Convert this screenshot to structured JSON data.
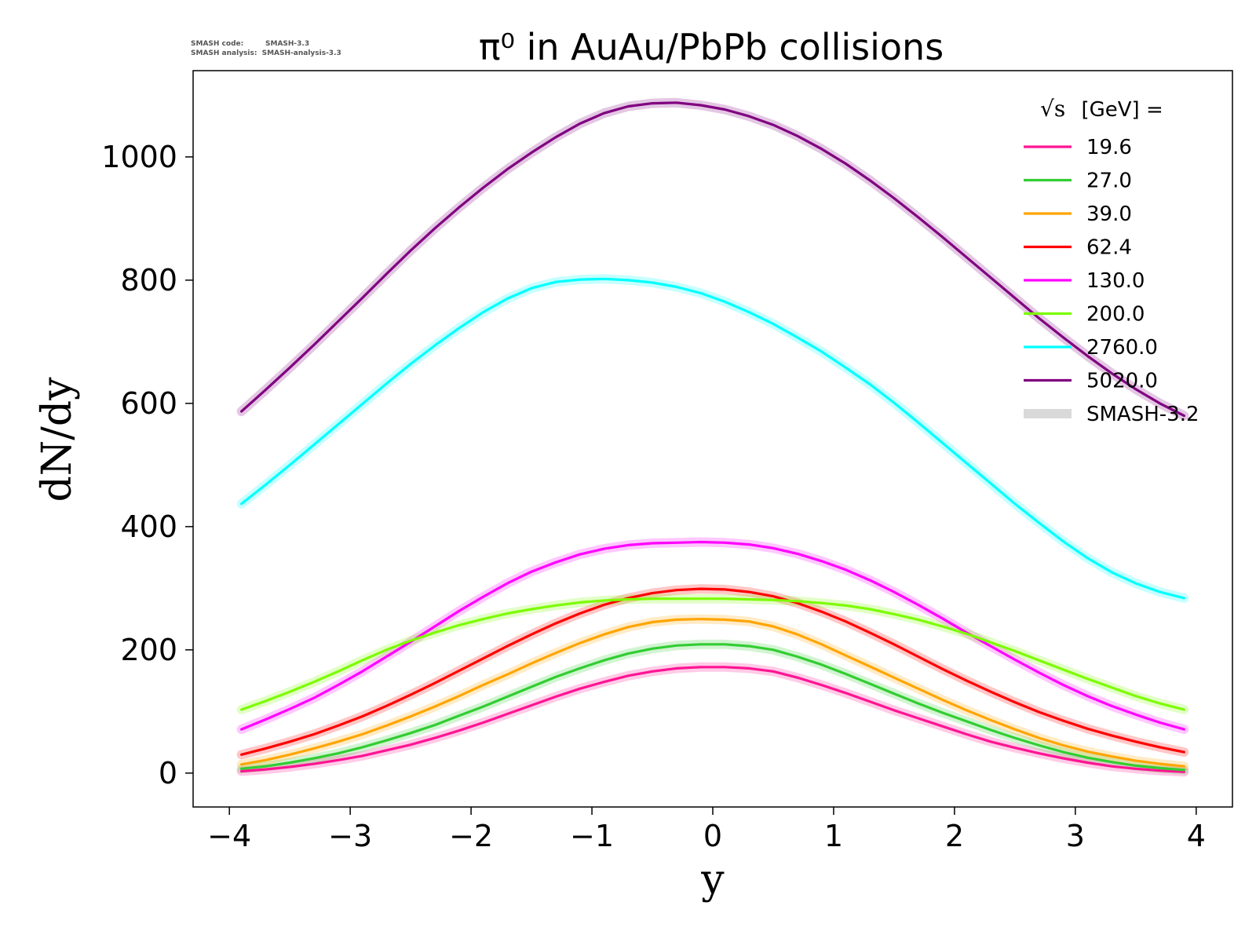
{
  "header_note": {
    "line1_label": "SMASH code:",
    "line1_value": "SMASH-3.3",
    "line2_label": "SMASH analysis:",
    "line2_value": "SMASH-analysis-3.3"
  },
  "chart_data": {
    "type": "line",
    "title": "π⁰ in AuAu/PbPb collisions",
    "xlabel": "y",
    "ylabel": "dN/dy",
    "xlim": [
      -4.3,
      4.3
    ],
    "ylim": [
      -55,
      1140
    ],
    "xticks": [
      -4,
      -3,
      -2,
      -1,
      0,
      1,
      2,
      3,
      4
    ],
    "xtick_labels": [
      "−4",
      "−3",
      "−2",
      "−1",
      "0",
      "1",
      "2",
      "3",
      "4"
    ],
    "yticks": [
      0,
      200,
      400,
      600,
      800,
      1000
    ],
    "ytick_labels": [
      "0",
      "200",
      "400",
      "600",
      "800",
      "1000"
    ],
    "grid": false,
    "legend_position": "top-right",
    "legend_title_symbol": "√s",
    "legend_title_text": "[GeV] =",
    "band_label": "SMASH-3.2",
    "band_color": "#d9d9d9",
    "x": [
      -3.9,
      -3.7,
      -3.5,
      -3.3,
      -3.1,
      -2.9,
      -2.7,
      -2.5,
      -2.3,
      -2.1,
      -1.9,
      -1.7,
      -1.5,
      -1.3,
      -1.1,
      -0.9,
      -0.7,
      -0.5,
      -0.3,
      -0.1,
      0.1,
      0.3,
      0.5,
      0.7,
      0.9,
      1.1,
      1.3,
      1.5,
      1.7,
      1.9,
      2.1,
      2.3,
      2.5,
      2.7,
      2.9,
      3.1,
      3.3,
      3.5,
      3.7,
      3.9
    ],
    "series": [
      {
        "name": "19.6",
        "color": "#ff1493",
        "values": [
          3,
          6,
          10,
          15,
          21,
          28,
          37,
          46,
          57,
          69,
          82,
          96,
          110,
          124,
          137,
          148,
          158,
          165,
          170,
          172,
          172,
          170,
          165,
          155,
          143,
          130,
          116,
          102,
          89,
          76,
          63,
          51,
          41,
          32,
          24,
          17,
          11,
          7,
          4,
          2
        ]
      },
      {
        "name": "27.0",
        "color": "#32cd32",
        "values": [
          7,
          11,
          17,
          24,
          32,
          42,
          53,
          65,
          78,
          93,
          108,
          124,
          140,
          156,
          170,
          183,
          194,
          202,
          207,
          209,
          209,
          206,
          200,
          189,
          176,
          161,
          145,
          129,
          113,
          98,
          84,
          70,
          57,
          45,
          34,
          25,
          18,
          12,
          8,
          5
        ]
      },
      {
        "name": "39.0",
        "color": "#ffa500",
        "values": [
          14,
          21,
          30,
          40,
          51,
          63,
          77,
          92,
          108,
          125,
          143,
          160,
          178,
          195,
          211,
          225,
          237,
          245,
          249,
          250,
          249,
          246,
          238,
          225,
          209,
          191,
          173,
          155,
          137,
          119,
          102,
          86,
          71,
          57,
          45,
          35,
          27,
          20,
          15,
          11
        ]
      },
      {
        "name": "62.4",
        "color": "#ff0000",
        "values": [
          30,
          40,
          51,
          63,
          77,
          92,
          109,
          127,
          146,
          166,
          186,
          206,
          225,
          243,
          259,
          273,
          284,
          292,
          297,
          299,
          298,
          294,
          287,
          276,
          262,
          246,
          228,
          209,
          189,
          169,
          150,
          132,
          115,
          99,
          85,
          72,
          61,
          51,
          42,
          34
        ]
      },
      {
        "name": "130.0",
        "color": "#ff00ff",
        "values": [
          71,
          87,
          104,
          122,
          143,
          165,
          189,
          213,
          238,
          263,
          286,
          308,
          327,
          342,
          355,
          364,
          370,
          373,
          374,
          375,
          374,
          371,
          365,
          356,
          344,
          330,
          313,
          294,
          273,
          251,
          228,
          206,
          184,
          163,
          143,
          125,
          109,
          95,
          82,
          71
        ]
      },
      {
        "name": "200.0",
        "color": "#7cfc00",
        "values": [
          103,
          117,
          132,
          148,
          165,
          183,
          200,
          215,
          228,
          240,
          250,
          259,
          266,
          272,
          277,
          280,
          282,
          283,
          283,
          283,
          283,
          282,
          281,
          279,
          276,
          272,
          266,
          258,
          249,
          238,
          226,
          212,
          198,
          183,
          168,
          153,
          139,
          125,
          113,
          103
        ]
      },
      {
        "name": "2760.0",
        "color": "#00ffff",
        "values": [
          437,
          468,
          500,
          533,
          566,
          599,
          632,
          664,
          694,
          722,
          748,
          770,
          787,
          797,
          801,
          802,
          800,
          796,
          789,
          779,
          765,
          748,
          729,
          707,
          684,
          658,
          631,
          601,
          569,
          536,
          503,
          470,
          437,
          406,
          376,
          349,
          326,
          308,
          294,
          284
        ]
      },
      {
        "name": "5020.0",
        "color": "#800080",
        "values": [
          587,
          622,
          658,
          695,
          733,
          771,
          810,
          848,
          884,
          918,
          950,
          980,
          1007,
          1032,
          1054,
          1071,
          1082,
          1087,
          1088,
          1084,
          1077,
          1066,
          1052,
          1034,
          1013,
          989,
          962,
          933,
          902,
          870,
          837,
          804,
          771,
          738,
          707,
          677,
          649,
          623,
          600,
          580
        ]
      }
    ]
  }
}
